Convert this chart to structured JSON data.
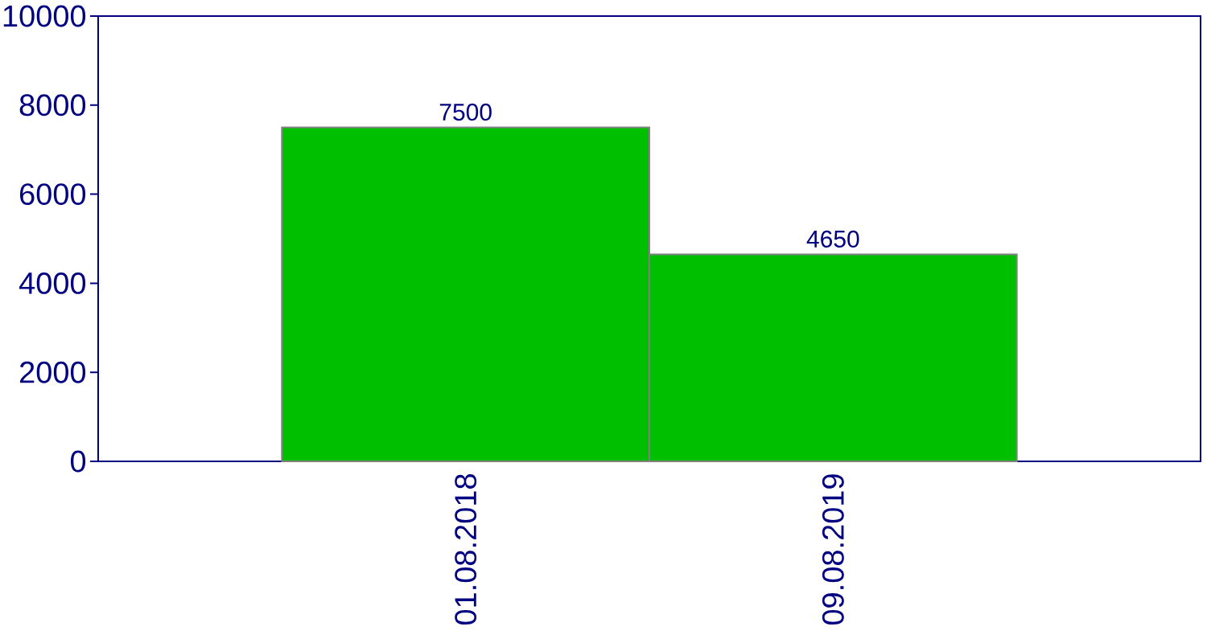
{
  "chart_data": {
    "type": "bar",
    "categories": [
      "01.08.2018",
      "09.08.2019"
    ],
    "values": [
      7500,
      4650
    ],
    "color": "#00bf00",
    "ylim": [
      0,
      10000
    ],
    "yticks": [
      0,
      2000,
      4000,
      6000,
      8000,
      10000
    ],
    "data_labels": true
  }
}
